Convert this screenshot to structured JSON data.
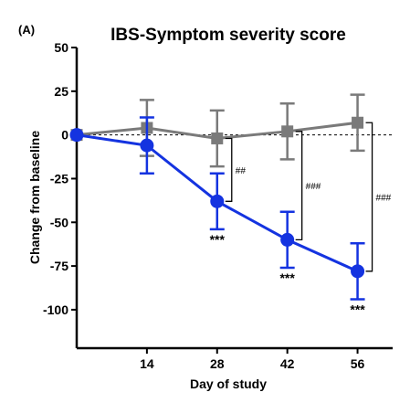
{
  "chart_data": {
    "type": "line",
    "panel_label": "(A)",
    "title": "IBS-Symptom severity score",
    "xlabel": "Day of study",
    "ylabel": "Change from baseline",
    "x": [
      0,
      14,
      28,
      42,
      56
    ],
    "x_ticks": [
      "14",
      "28",
      "42",
      "56"
    ],
    "x_tick_values": [
      14,
      28,
      42,
      56
    ],
    "y_ticks": [
      "50",
      "25",
      "0",
      "-25",
      "-50",
      "-75",
      "-100"
    ],
    "y_tick_values": [
      50,
      25,
      0,
      -25,
      -50,
      -75,
      -100
    ],
    "xlim": [
      0,
      63
    ],
    "ylim": [
      -122,
      50
    ],
    "baseline_dashed_at": 0,
    "grid": false,
    "legend": "none",
    "series": [
      {
        "color": "#7a7a7a",
        "marker": "square",
        "values": [
          0,
          4,
          -2,
          2,
          7
        ],
        "err": [
          0,
          16,
          16,
          16,
          16
        ]
      },
      {
        "color": "#1433e0",
        "marker": "circle",
        "values": [
          0,
          -6,
          -38,
          -60,
          -78
        ],
        "err": [
          0,
          16,
          16,
          16,
          16
        ]
      }
    ],
    "annotations": {
      "star_label": "***",
      "stars_at_x": [
        28,
        42,
        56
      ],
      "brackets": [
        {
          "x": 28,
          "label": "##"
        },
        {
          "x": 42,
          "label": "###"
        },
        {
          "x": 56,
          "label": "###"
        }
      ]
    }
  }
}
